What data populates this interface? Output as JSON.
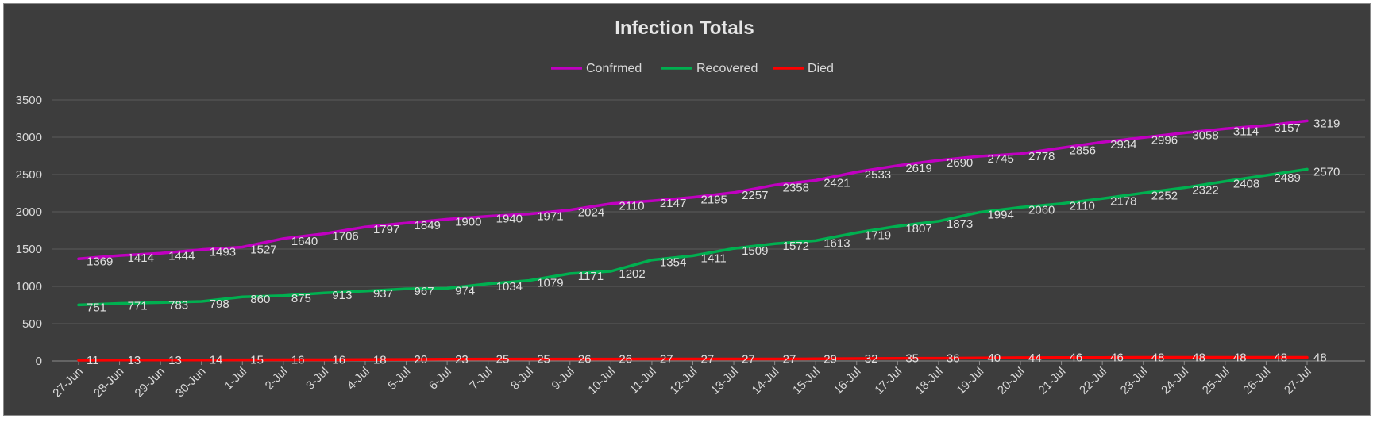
{
  "chart_data": {
    "type": "line",
    "title": "Infection Totals",
    "xlabel": "",
    "ylabel": "",
    "ylim": [
      0,
      3500
    ],
    "yticks": [
      0,
      500,
      1000,
      1500,
      2000,
      2500,
      3000,
      3500
    ],
    "grid": true,
    "legend_position": "top-center",
    "background": "#3d3d3d",
    "categories": [
      "27-Jun",
      "28-Jun",
      "29-Jun",
      "30-Jun",
      "1-Jul",
      "2-Jul",
      "3-Jul",
      "4-Jul",
      "5-Jul",
      "6-Jul",
      "7-Jul",
      "8-Jul",
      "9-Jul",
      "10-Jul",
      "11-Jul",
      "12-Jul",
      "13-Jul",
      "14-Jul",
      "15-Jul",
      "16-Jul",
      "17-Jul",
      "18-Jul",
      "19-Jul",
      "20-Jul",
      "21-Jul",
      "22-Jul",
      "23-Jul",
      "24-Jul",
      "25-Jul",
      "26-Jul",
      "27-Jul"
    ],
    "series": [
      {
        "name": "Confrmed",
        "color": "#c000c0",
        "values": [
          1369,
          1414,
          1444,
          1493,
          1527,
          1640,
          1706,
          1797,
          1849,
          1900,
          1940,
          1971,
          2024,
          2110,
          2147,
          2195,
          2257,
          2358,
          2421,
          2533,
          2619,
          2690,
          2745,
          2778,
          2856,
          2934,
          2996,
          3058,
          3114,
          3157,
          3219
        ]
      },
      {
        "name": "Recovered",
        "color": "#00b050",
        "values": [
          751,
          771,
          783,
          798,
          860,
          875,
          913,
          937,
          967,
          974,
          1034,
          1079,
          1171,
          1202,
          1354,
          1411,
          1509,
          1572,
          1613,
          1719,
          1807,
          1873,
          1994,
          2060,
          2110,
          2178,
          2252,
          2322,
          2408,
          2489,
          2570
        ]
      },
      {
        "name": "Died",
        "color": "#ff0000",
        "values": [
          11,
          13,
          13,
          14,
          15,
          16,
          16,
          18,
          20,
          23,
          25,
          25,
          26,
          26,
          27,
          27,
          27,
          27,
          29,
          32,
          35,
          36,
          40,
          44,
          46,
          46,
          48,
          48,
          48,
          48,
          48
        ]
      }
    ]
  }
}
